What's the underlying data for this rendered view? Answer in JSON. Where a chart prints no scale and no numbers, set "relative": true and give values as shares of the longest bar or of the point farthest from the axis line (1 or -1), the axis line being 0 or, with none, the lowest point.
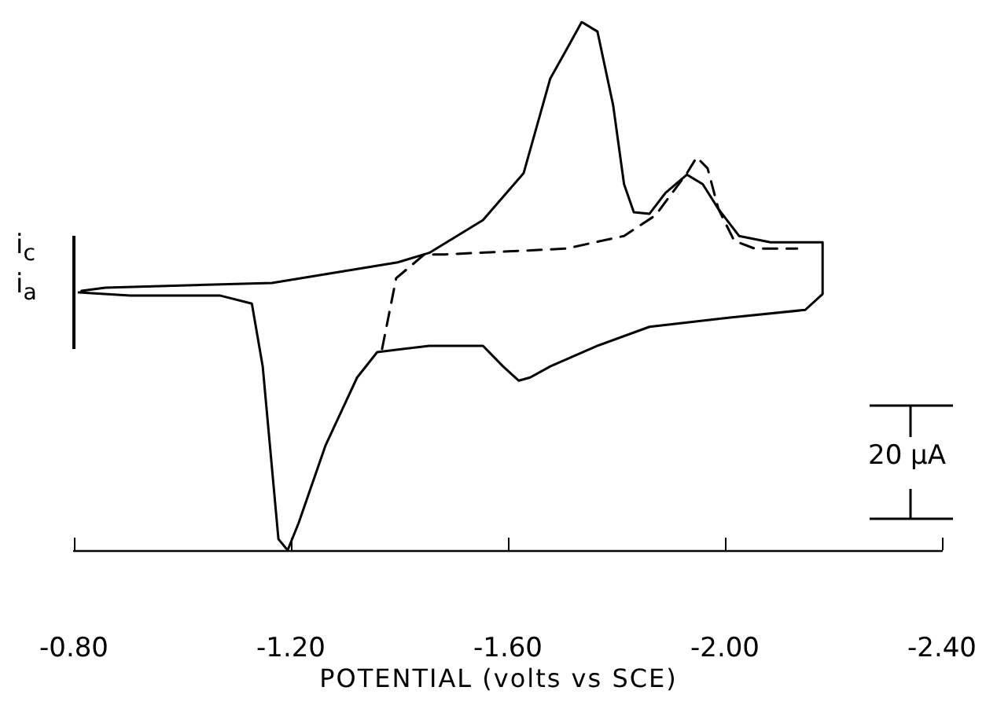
{
  "chart_data": {
    "type": "line",
    "relative": true,
    "xlabel": "POTENTIAL (volts vs SCE)",
    "xlim": [
      -0.8,
      -2.4
    ],
    "xticks": [
      {
        "value": -0.8,
        "label": "-0.80"
      },
      {
        "value": -1.2,
        "label": "-1.20"
      },
      {
        "value": -1.6,
        "label": "-1.60"
      },
      {
        "value": -2.0,
        "label": "-2.00"
      },
      {
        "value": -2.4,
        "label": "-2.40"
      }
    ],
    "grid": false,
    "marker": "none",
    "annotations": [
      "i$_{c}$",
      "i$_{a}$",
      "20 μA"
    ],
    "series": [
      {
        "color": "#000000",
        "line_style": "solid",
        "x": [
          -0.814,
          -0.858,
          -1.165,
          -1.397,
          -1.455,
          -1.554,
          -1.629,
          -1.678,
          -1.707,
          -1.736,
          -1.765,
          -1.794,
          -1.814,
          -1.832,
          -1.861,
          -1.89,
          -1.93,
          -1.959,
          -1.988,
          -2.026,
          -2.084,
          -2.18,
          -2.18,
          -2.148,
          -2.006,
          -1.861,
          -1.765,
          -1.678,
          -1.641,
          -1.62,
          -1.591,
          -1.554,
          -1.455,
          -1.359,
          -1.322,
          -1.264,
          -1.214,
          -1.194,
          -1.177,
          -1.148,
          -1.128,
          -1.07,
          -0.904,
          -0.809
        ],
        "values": [
          0.491,
          0.497,
          0.506,
          0.545,
          0.563,
          0.625,
          0.714,
          0.893,
          0.946,
          1.0,
          0.982,
          0.842,
          0.693,
          0.64,
          0.637,
          0.676,
          0.711,
          0.693,
          0.646,
          0.595,
          0.583,
          0.583,
          0.485,
          0.455,
          0.44,
          0.423,
          0.387,
          0.348,
          0.327,
          0.321,
          0.348,
          0.387,
          0.387,
          0.375,
          0.327,
          0.199,
          0.051,
          0,
          0.021,
          0.348,
          0.467,
          0.482,
          0.482,
          0.488
        ]
      },
      {
        "color": "#000000",
        "line_style": "dashed",
        "x": [
          -1.368,
          -1.394,
          -1.446,
          -1.484,
          -1.707,
          -1.814,
          -1.872,
          -1.93,
          -1.948,
          -1.968,
          -1.988,
          -2.017,
          -2.055,
          -2.133
        ],
        "values": [
          0.381,
          0.515,
          0.56,
          0.56,
          0.571,
          0.595,
          0.634,
          0.714,
          0.744,
          0.723,
          0.646,
          0.586,
          0.571,
          0.571
        ]
      }
    ]
  }
}
